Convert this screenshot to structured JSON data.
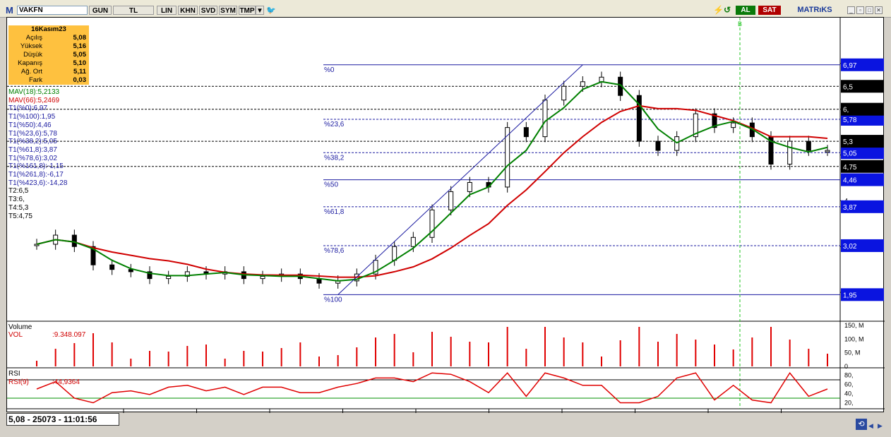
{
  "toolbar": {
    "logo": "M",
    "symbol": "VAKFN",
    "buttons": [
      "GUN",
      "TL",
      "LIN",
      "KHN",
      "SVD",
      "SYM",
      "TMP"
    ],
    "buy": "AL",
    "sell": "SAT",
    "brand": "MATRıKS"
  },
  "info_box": {
    "date": "16Kasım23",
    "rows": [
      {
        "label": "Açılış",
        "value": "5,08"
      },
      {
        "label": "Yüksek",
        "value": "5,16"
      },
      {
        "label": "Düşük",
        "value": "5,05"
      },
      {
        "label": "Kapanış",
        "value": "5,10"
      },
      {
        "label": "Ağ. Ort",
        "value": "5,11"
      },
      {
        "label": "Fark",
        "value": "0,03"
      }
    ]
  },
  "indicators": [
    {
      "text": "MAV(18)",
      "value": ":5,2133",
      "color": "#008000"
    },
    {
      "text": "MAV(66)",
      "value": ":5,2469",
      "color": "#d00000"
    },
    {
      "text": "T1(%0):6,97",
      "value": "",
      "color": "#1a1aa0"
    },
    {
      "text": "T1(%100):1,95",
      "value": "",
      "color": "#1a1aa0"
    },
    {
      "text": "T1(%50):4,46",
      "value": "",
      "color": "#1a1aa0"
    },
    {
      "text": "T1(%23,6):5,78",
      "value": "",
      "color": "#1a1aa0"
    },
    {
      "text": "T1(%38,2):5,05",
      "value": "",
      "color": "#1a1aa0"
    },
    {
      "text": "T1(%61,8):3,87",
      "value": "",
      "color": "#1a1aa0"
    },
    {
      "text": "T1(%78,6):3,02",
      "value": "",
      "color": "#1a1aa0"
    },
    {
      "text": "T1(%161,8):-1,15",
      "value": "",
      "color": "#1a1aa0"
    },
    {
      "text": "T1(%261,8):-6,17",
      "value": "",
      "color": "#1a1aa0"
    },
    {
      "text": "T1(%423,6):-14,28",
      "value": "",
      "color": "#1a1aa0"
    },
    {
      "text": "T2:6,5",
      "value": "",
      "color": "#000000"
    },
    {
      "text": "T3:6,",
      "value": "",
      "color": "#000000"
    },
    {
      "text": "T4:5,3",
      "value": "",
      "color": "#000000"
    },
    {
      "text": "T5:4,75",
      "value": "",
      "color": "#000000"
    }
  ],
  "fib_labels": [
    {
      "text": "%0",
      "price": 6.97
    },
    {
      "text": "%23,6",
      "price": 5.78
    },
    {
      "text": "%38,2",
      "price": 5.05
    },
    {
      "text": "%50",
      "price": 4.46
    },
    {
      "text": "%61,8",
      "price": 3.87
    },
    {
      "text": "%78,6",
      "price": 3.02
    },
    {
      "text": "%100",
      "price": 1.95
    }
  ],
  "h_levels": [
    {
      "price": 6.5,
      "label": "6,5"
    },
    {
      "price": 6.0,
      "label": "6,"
    },
    {
      "price": 5.3,
      "label": "5,3"
    },
    {
      "price": 4.75,
      "label": "4,75"
    }
  ],
  "price_axis_ticks": [
    "7",
    "6",
    "5",
    "4",
    "3",
    "2"
  ],
  "marker_letter": "B",
  "volume": {
    "title": "Volume",
    "label": "VOL",
    "value": ":9.348.097",
    "ticks": [
      "150, M",
      "100, M",
      "50, M",
      "0"
    ]
  },
  "rsi": {
    "title": "RSI",
    "label": "RSI(9)",
    "value": ":44,9364",
    "ticks": [
      "80,",
      "60,",
      "40,",
      "20,"
    ]
  },
  "months": [
    "Şub23",
    "Mar23",
    "Nis23",
    "May23",
    "Haz23",
    "Tem23",
    "Ağu23",
    "Eyl23",
    "Eki23",
    "Kas23"
  ],
  "status": "5,08 - 25073 - 11:01:56",
  "colors": {
    "ma18": "#008000",
    "ma66": "#d00000",
    "fib": "#1a1aa0",
    "accent": "#fec13f"
  },
  "chart_data": {
    "type": "line",
    "x_start": "Şub23",
    "months": [
      "Şub23",
      "Mar23",
      "Nis23",
      "May23",
      "Haz23",
      "Tem23",
      "Ağu23",
      "Eyl23",
      "Eki23",
      "Kas23"
    ],
    "close": [
      3.05,
      3.25,
      3.0,
      2.6,
      2.5,
      2.45,
      2.3,
      2.35,
      2.45,
      2.4,
      2.45,
      2.3,
      2.35,
      2.4,
      2.3,
      2.2,
      2.25,
      2.4,
      2.7,
      3.0,
      3.2,
      3.8,
      4.2,
      4.4,
      4.3,
      5.6,
      5.4,
      6.2,
      6.5,
      6.6,
      6.7,
      6.3,
      5.3,
      5.1,
      5.4,
      5.9,
      5.6,
      5.7,
      5.4,
      4.8,
      5.3,
      5.1,
      5.1
    ],
    "mav18_last": 5.2133,
    "mav66_last": 5.2469,
    "rsi_last": 44.9364,
    "volume_last": 9348097,
    "ylim": [
      1.4,
      8.0
    ]
  }
}
